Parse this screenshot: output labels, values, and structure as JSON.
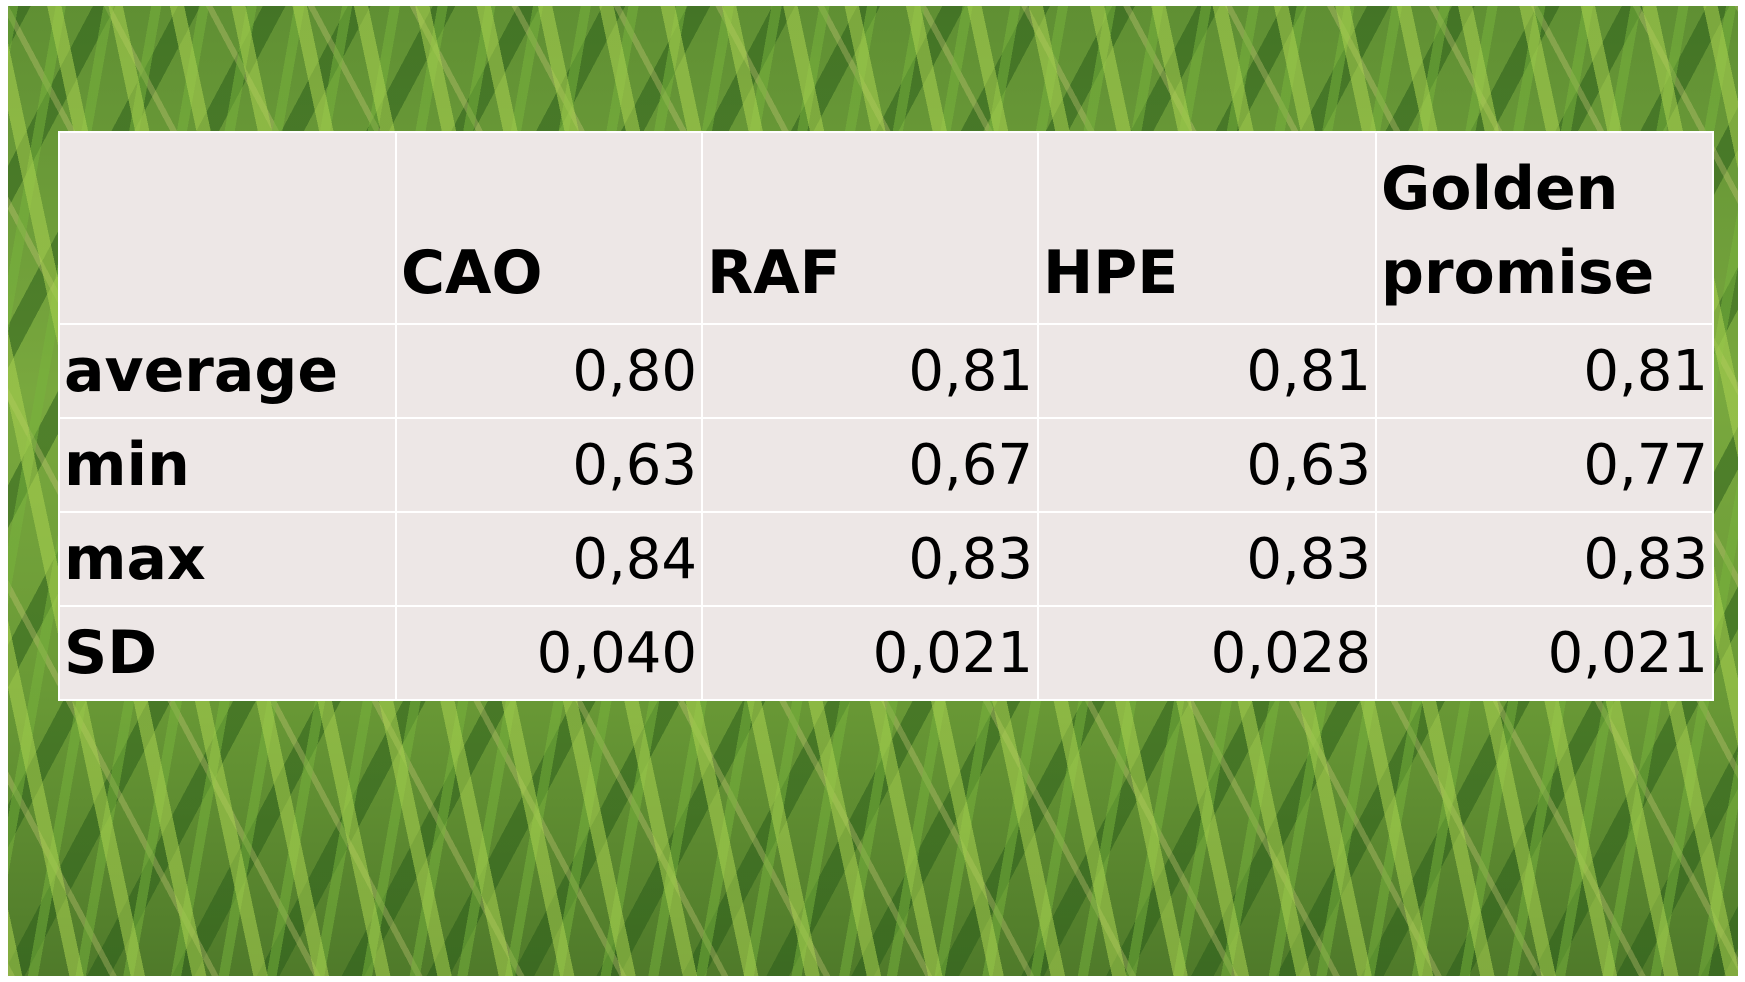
{
  "table": {
    "columns": [
      "CAO",
      "RAF",
      "HPE",
      "Golden promise"
    ],
    "rows": [
      {
        "label": "average",
        "values": [
          "0,80",
          "0,81",
          "0,81",
          "0,81"
        ]
      },
      {
        "label": "min",
        "values": [
          "0,63",
          "0,67",
          "0,63",
          "0,77"
        ]
      },
      {
        "label": "max",
        "values": [
          "0,84",
          "0,83",
          "0,83",
          "0,83"
        ]
      },
      {
        "label": "SD",
        "values": [
          "0,040",
          "0,021",
          "0,028",
          "0,021"
        ]
      }
    ]
  }
}
